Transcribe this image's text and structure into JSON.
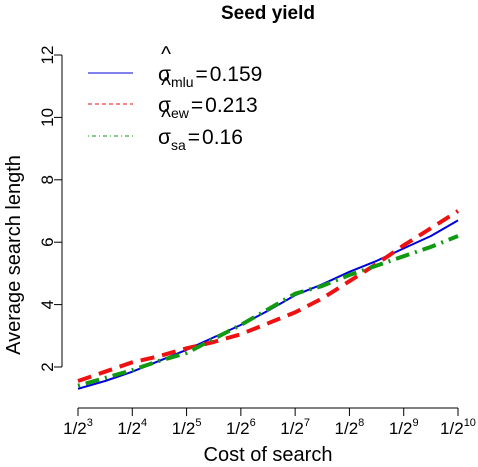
{
  "chart_data": {
    "type": "line",
    "title": "Seed yield",
    "xlabel": "Cost of search",
    "ylabel": "Average search length",
    "x_ticks": [
      {
        "base": "1/2",
        "exp": "3"
      },
      {
        "base": "1/2",
        "exp": "4"
      },
      {
        "base": "1/2",
        "exp": "5"
      },
      {
        "base": "1/2",
        "exp": "6"
      },
      {
        "base": "1/2",
        "exp": "7"
      },
      {
        "base": "1/2",
        "exp": "8"
      },
      {
        "base": "1/2",
        "exp": "9"
      },
      {
        "base": "1/2",
        "exp": "10"
      }
    ],
    "x_exponents": [
      3,
      4,
      5,
      6,
      7,
      8,
      9,
      10
    ],
    "y_ticks": [
      "2",
      "4",
      "6",
      "8",
      "10",
      "12"
    ],
    "ylim": [
      1,
      12.5
    ],
    "xlim": [
      3,
      10
    ],
    "grid": false,
    "legend_position": "top-left",
    "series": [
      {
        "name": "mlu",
        "legend_value": "0.159",
        "color": "#0000dd",
        "dash": "solid",
        "x": [
          3,
          3.5,
          4,
          4.5,
          5,
          5.5,
          6,
          6.5,
          7,
          7.5,
          8,
          8.5,
          9,
          9.5,
          10
        ],
        "y": [
          1.3,
          1.55,
          1.85,
          2.2,
          2.55,
          2.95,
          3.35,
          3.8,
          4.3,
          4.65,
          5.05,
          5.4,
          5.8,
          6.2,
          6.7
        ]
      },
      {
        "name": "ew",
        "legend_value": "0.213",
        "color": "#ee1111",
        "dash": "dashed",
        "x": [
          3,
          3.5,
          4,
          4.5,
          5,
          5.5,
          6,
          6.5,
          7,
          7.5,
          8,
          8.5,
          9,
          9.5,
          10
        ],
        "y": [
          1.55,
          1.85,
          2.15,
          2.35,
          2.6,
          2.8,
          3.05,
          3.4,
          3.75,
          4.2,
          4.75,
          5.3,
          5.9,
          6.45,
          7.0
        ]
      },
      {
        "name": "sa",
        "legend_value": "0.16",
        "color": "#119911",
        "dash": "dotdash",
        "x": [
          3,
          3.5,
          4,
          4.5,
          5,
          5.5,
          6,
          6.5,
          7,
          7.5,
          8,
          8.5,
          9,
          9.5,
          10
        ],
        "y": [
          1.4,
          1.65,
          1.9,
          2.2,
          2.45,
          2.9,
          3.35,
          3.85,
          4.35,
          4.6,
          4.95,
          5.25,
          5.55,
          5.85,
          6.2
        ]
      }
    ]
  }
}
